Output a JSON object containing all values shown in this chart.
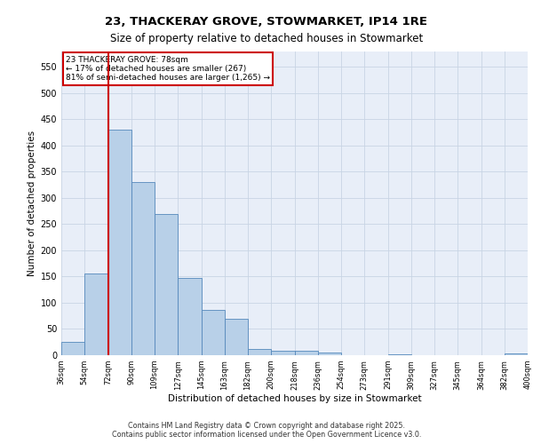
{
  "title1": "23, THACKERAY GROVE, STOWMARKET, IP14 1RE",
  "title2": "Size of property relative to detached houses in Stowmarket",
  "xlabel": "Distribution of detached houses by size in Stowmarket",
  "ylabel": "Number of detached properties",
  "footer1": "Contains HM Land Registry data © Crown copyright and database right 2025.",
  "footer2": "Contains public sector information licensed under the Open Government Licence v3.0.",
  "annotation_line1": "23 THACKERAY GROVE: 78sqm",
  "annotation_line2": "← 17% of detached houses are smaller (267)",
  "annotation_line3": "81% of semi-detached houses are larger (1,265) →",
  "bar_values": [
    25,
    155,
    430,
    330,
    270,
    147,
    87,
    70,
    12,
    9,
    9,
    5,
    0,
    0,
    1,
    0,
    0,
    0,
    0,
    3
  ],
  "bar_color": "#b8d0e8",
  "bar_edge_color": "#5588bb",
  "grid_color": "#c8d4e4",
  "background_color": "#e8eef8",
  "vline_color": "#cc0000",
  "vline_x": 2.0,
  "annotation_box_color": "#cc0000",
  "ylim": [
    0,
    580
  ],
  "yticks": [
    0,
    50,
    100,
    150,
    200,
    250,
    300,
    350,
    400,
    450,
    500,
    550
  ],
  "categories": [
    "36sqm",
    "54sqm",
    "72sqm",
    "90sqm",
    "109sqm",
    "127sqm",
    "145sqm",
    "163sqm",
    "182sqm",
    "200sqm",
    "218sqm",
    "236sqm",
    "254sqm",
    "273sqm",
    "291sqm",
    "309sqm",
    "327sqm",
    "345sqm",
    "364sqm",
    "382sqm",
    "400sqm"
  ]
}
